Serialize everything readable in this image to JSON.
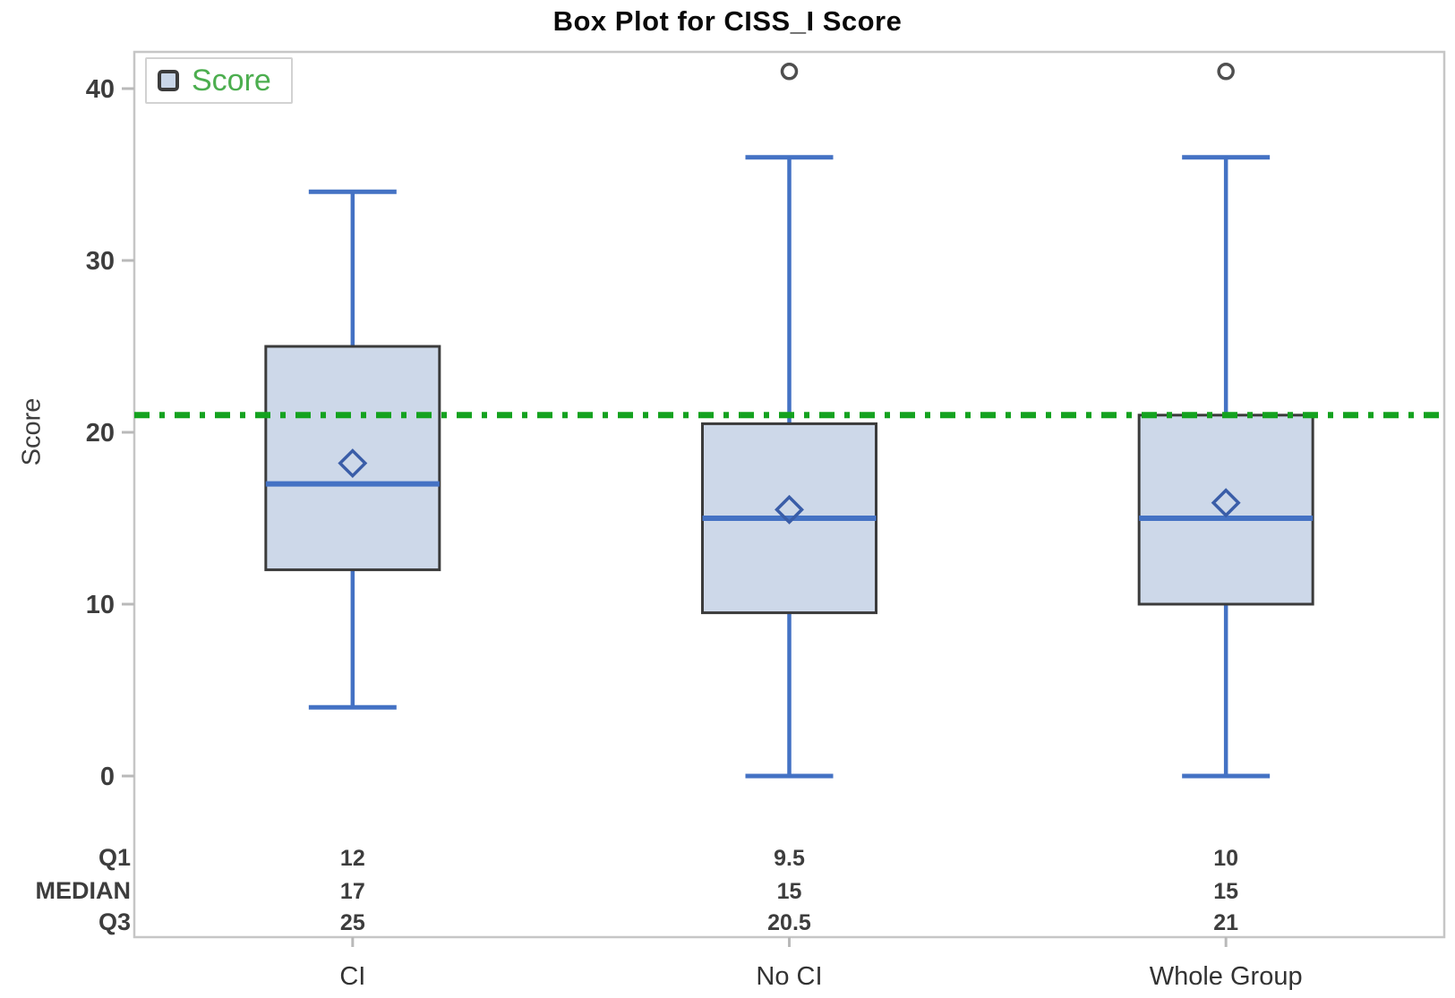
{
  "chart_data": {
    "type": "box",
    "title": "Box Plot for CISS_I Score",
    "ylabel": "Score",
    "xlabel": "",
    "legend": {
      "label": "Score",
      "position": "top-left"
    },
    "y_ticks": [
      0,
      10,
      20,
      30,
      40
    ],
    "ylim": [
      0,
      42
    ],
    "grid": false,
    "reference_line": {
      "value": 21,
      "style": "dash-dot"
    },
    "categories": [
      "CI",
      "No CI",
      "Whole Group"
    ],
    "series": [
      {
        "category": "CI",
        "min": 4,
        "q1": 12,
        "median": 17,
        "q3": 25,
        "max": 34,
        "mean": 18.2,
        "outliers": []
      },
      {
        "category": "No CI",
        "min": 0,
        "q1": 9.5,
        "median": 15,
        "q3": 20.5,
        "max": 36,
        "mean": 15.5,
        "outliers": [
          41
        ]
      },
      {
        "category": "Whole Group",
        "min": 0,
        "q1": 10,
        "median": 15,
        "q3": 21,
        "max": 36,
        "mean": 15.9,
        "outliers": [
          41
        ]
      }
    ],
    "stat_table": {
      "rows": [
        {
          "label": "Q1",
          "values": [
            "12",
            "9.5",
            "10"
          ]
        },
        {
          "label": "MEDIAN",
          "values": [
            "17",
            "15",
            "15"
          ]
        },
        {
          "label": "Q3",
          "values": [
            "25",
            "20.5",
            "21"
          ]
        }
      ]
    },
    "colors": {
      "box_fill": "#cdd8e9",
      "box_border": "#3b3b3b",
      "whisker": "#4472c4",
      "mean_marker": "#3a5da8",
      "outlier": "#4f4f4f",
      "reference": "#14a21f",
      "axis_frame": "#c6c6c6",
      "tick": "#b9b9b9",
      "text": "#3d3d3d",
      "legend_text": "#4cae4f"
    }
  }
}
